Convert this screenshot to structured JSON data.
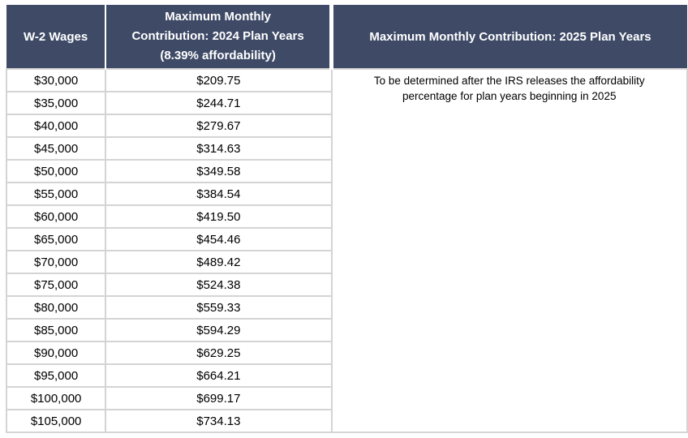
{
  "table": {
    "header": {
      "col1": "W-2 Wages",
      "col2": "Maximum Monthly Contribution: 2024 Plan Years (8.39% affordability)",
      "col2_lines": [
        "Maximum Monthly",
        "Contribution: 2024 Plan Years",
        "(8.39% affordability)"
      ],
      "col3": "Maximum Monthly Contribution: 2025 Plan Years"
    },
    "rows": [
      {
        "wages": "$30,000",
        "contribution": "$209.75"
      },
      {
        "wages": "$35,000",
        "contribution": "$244.71"
      },
      {
        "wages": "$40,000",
        "contribution": "$279.67"
      },
      {
        "wages": "$45,000",
        "contribution": "$314.63"
      },
      {
        "wages": "$50,000",
        "contribution": "$349.58"
      },
      {
        "wages": "$55,000",
        "contribution": "$384.54"
      },
      {
        "wages": "$60,000",
        "contribution": "$419.50"
      },
      {
        "wages": "$65,000",
        "contribution": "$454.46"
      },
      {
        "wages": "$70,000",
        "contribution": "$489.42"
      },
      {
        "wages": "$75,000",
        "contribution": "$524.38"
      },
      {
        "wages": "$80,000",
        "contribution": "$559.33"
      },
      {
        "wages": "$85,000",
        "contribution": "$594.29"
      },
      {
        "wages": "$90,000",
        "contribution": "$629.25"
      },
      {
        "wages": "$95,000",
        "contribution": "$664.21"
      },
      {
        "wages": "$100,000",
        "contribution": "$699.17"
      },
      {
        "wages": "$105,000",
        "contribution": "$734.13"
      }
    ],
    "note_2025": "To be determined after the IRS releases the affordability percentage for plan years beginning in 2025"
  },
  "colors": {
    "header_bg": "#3E4A66",
    "header_text": "#FFFFFF",
    "border": "#D4D4D4",
    "body_text": "#000000"
  }
}
